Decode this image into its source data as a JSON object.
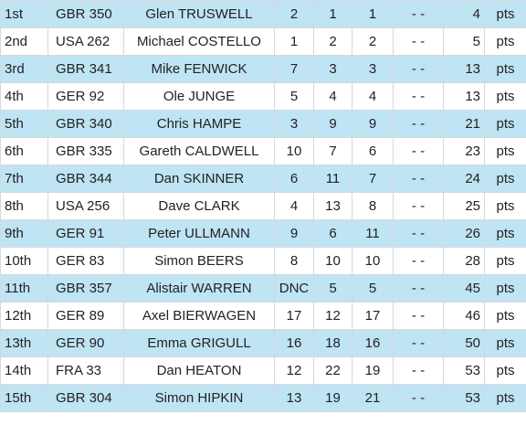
{
  "table": {
    "rows": [
      [
        "1st",
        "GBR 350",
        "Glen TRUSWELL",
        2,
        1,
        1,
        "- -",
        4,
        "pts"
      ],
      [
        "2nd",
        "USA 262",
        "Michael COSTELLO",
        1,
        2,
        2,
        "- -",
        5,
        "pts"
      ],
      [
        "3rd",
        "GBR 341",
        "Mike FENWICK",
        7,
        3,
        3,
        "- -",
        13,
        "pts"
      ],
      [
        "4th",
        "GER 92",
        "Ole JUNGE",
        5,
        4,
        4,
        "- -",
        13,
        "pts"
      ],
      [
        "5th",
        "GBR 340",
        "Chris HAMPE",
        3,
        9,
        9,
        "- -",
        21,
        "pts"
      ],
      [
        "6th",
        "GBR 335",
        "Gareth CALDWELL",
        10,
        7,
        6,
        "- -",
        23,
        "pts"
      ],
      [
        "7th",
        "GBR 344",
        "Dan SKINNER",
        6,
        11,
        7,
        "- -",
        24,
        "pts"
      ],
      [
        "8th",
        "USA 256",
        "Dave CLARK",
        4,
        13,
        8,
        "- -",
        25,
        "pts"
      ],
      [
        "9th",
        "GER 91",
        "Peter ULLMANN",
        9,
        6,
        11,
        "- -",
        26,
        "pts"
      ],
      [
        "10th",
        "GER 83",
        "Simon BEERS",
        8,
        10,
        10,
        "- -",
        28,
        "pts"
      ],
      [
        "11th",
        "GBR 357",
        "Alistair WARREN",
        "DNC",
        5,
        5,
        "- -",
        45,
        "pts"
      ],
      [
        "12th",
        "GER 89",
        "Axel BIERWAGEN",
        17,
        12,
        17,
        "- -",
        46,
        "pts"
      ],
      [
        "13th",
        "GER 90",
        "Emma GRIGULL",
        16,
        18,
        16,
        "- -",
        50,
        "pts"
      ],
      [
        "14th",
        "FRA 33",
        "Dan HEATON",
        12,
        22,
        19,
        "- -",
        53,
        "pts"
      ],
      [
        "15th",
        "GBR 304",
        "Simon HIPKIN",
        13,
        19,
        21,
        "- -",
        53,
        "pts"
      ]
    ]
  }
}
